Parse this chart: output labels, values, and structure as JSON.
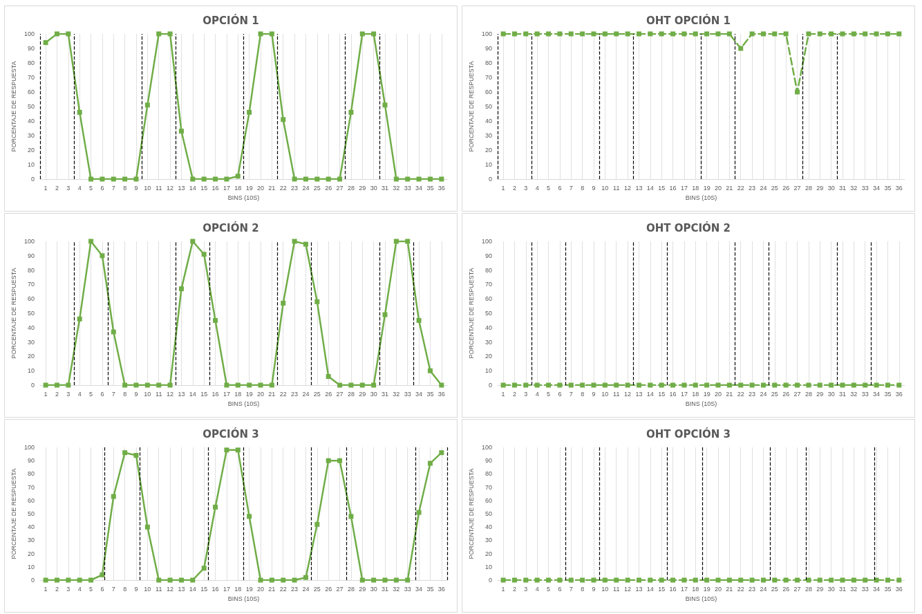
{
  "chart_data": [
    {
      "type": "line",
      "title": "OPCIÓN 1",
      "xlabel": "BINS (10S)",
      "ylabel": "PORCENTAJE DE RESPUESTA",
      "x": [
        1,
        2,
        3,
        4,
        5,
        6,
        7,
        8,
        9,
        10,
        11,
        12,
        13,
        14,
        15,
        16,
        17,
        18,
        19,
        20,
        21,
        22,
        23,
        24,
        25,
        26,
        27,
        28,
        29,
        30,
        31,
        32,
        33,
        34,
        35,
        36
      ],
      "xlim": [
        0.5,
        36.5
      ],
      "xticks": [
        1,
        2,
        3,
        4,
        5,
        6,
        7,
        8,
        9,
        10,
        11,
        12,
        13,
        14,
        15,
        16,
        17,
        18,
        19,
        20,
        21,
        22,
        23,
        24,
        25,
        26,
        27,
        28,
        29,
        30,
        31,
        32,
        33,
        34,
        35,
        36
      ],
      "ylim": [
        0,
        100
      ],
      "yticks": [
        0,
        10,
        20,
        30,
        40,
        50,
        60,
        70,
        80,
        90,
        100
      ],
      "grid": "x",
      "marker": "square",
      "line_style": "solid",
      "series": [
        {
          "color": "#70ad47",
          "values": [
            94,
            100,
            100,
            46,
            0,
            0,
            0,
            0,
            0,
            51,
            100,
            100,
            33,
            0,
            0,
            0,
            0,
            2,
            46,
            100,
            100,
            41,
            0,
            0,
            0,
            0,
            0,
            46,
            100,
            100,
            51,
            0,
            0,
            0,
            0,
            0
          ]
        }
      ],
      "ref_lines": [
        {
          "axis": "x",
          "value": 0.5,
          "color": "#000000",
          "line_style": "dashed"
        },
        {
          "axis": "x",
          "value": 3.5,
          "color": "#000000",
          "line_style": "dashed"
        },
        {
          "axis": "x",
          "value": 9.5,
          "color": "#000000",
          "line_style": "dashed"
        },
        {
          "axis": "x",
          "value": 12.5,
          "color": "#000000",
          "line_style": "dashed"
        },
        {
          "axis": "x",
          "value": 18.5,
          "color": "#000000",
          "line_style": "dashed"
        },
        {
          "axis": "x",
          "value": 21.5,
          "color": "#000000",
          "line_style": "dashed"
        },
        {
          "axis": "x",
          "value": 27.5,
          "color": "#000000",
          "line_style": "dashed"
        },
        {
          "axis": "x",
          "value": 30.5,
          "color": "#000000",
          "line_style": "dashed"
        }
      ]
    },
    {
      "type": "line",
      "title": "OHT OPCIÓN 1",
      "xlabel": "BINS (10S)",
      "ylabel": "PORCENTAJE DE RESPUESTA",
      "x": [
        1,
        2,
        3,
        4,
        5,
        6,
        7,
        8,
        9,
        10,
        11,
        12,
        13,
        14,
        15,
        16,
        17,
        18,
        19,
        20,
        21,
        22,
        23,
        24,
        25,
        26,
        27,
        28,
        29,
        30,
        31,
        32,
        33,
        34,
        35,
        36
      ],
      "xlim": [
        0.5,
        36.5
      ],
      "xticks": [
        1,
        2,
        3,
        4,
        5,
        6,
        7,
        8,
        9,
        10,
        11,
        12,
        13,
        14,
        15,
        16,
        17,
        18,
        19,
        20,
        21,
        22,
        23,
        24,
        25,
        26,
        27,
        28,
        29,
        30,
        31,
        32,
        33,
        34,
        35,
        36
      ],
      "ylim": [
        0,
        100
      ],
      "yticks": [
        0,
        10,
        20,
        30,
        40,
        50,
        60,
        70,
        80,
        90,
        100
      ],
      "grid": "x",
      "marker": "square",
      "line_style": "dashed",
      "series": [
        {
          "color": "#70ad47",
          "values": [
            100,
            100,
            100,
            100,
            100,
            100,
            100,
            100,
            100,
            100,
            100,
            100,
            100,
            100,
            100,
            100,
            100,
            100,
            100,
            100,
            100,
            90,
            100,
            100,
            100,
            100,
            60,
            100,
            100,
            100,
            100,
            100,
            100,
            100,
            100,
            100
          ]
        }
      ],
      "ref_lines": [
        {
          "axis": "x",
          "value": 0.5,
          "color": "#000000",
          "line_style": "dashed"
        },
        {
          "axis": "x",
          "value": 3.5,
          "color": "#000000",
          "line_style": "dashed"
        },
        {
          "axis": "x",
          "value": 9.5,
          "color": "#000000",
          "line_style": "dashed"
        },
        {
          "axis": "x",
          "value": 12.5,
          "color": "#000000",
          "line_style": "dashed"
        },
        {
          "axis": "x",
          "value": 18.5,
          "color": "#000000",
          "line_style": "dashed"
        },
        {
          "axis": "x",
          "value": 21.5,
          "color": "#000000",
          "line_style": "dashed"
        },
        {
          "axis": "x",
          "value": 27.5,
          "color": "#000000",
          "line_style": "dashed"
        },
        {
          "axis": "x",
          "value": 30.5,
          "color": "#000000",
          "line_style": "dashed"
        }
      ]
    },
    {
      "type": "line",
      "title": "OPCIÓN 2",
      "xlabel": "BINS (10S)",
      "ylabel": "PORCENTAJE DE RESPUESTA",
      "x": [
        1,
        2,
        3,
        4,
        5,
        6,
        7,
        8,
        9,
        10,
        11,
        12,
        13,
        14,
        15,
        16,
        17,
        18,
        19,
        20,
        21,
        22,
        23,
        24,
        25,
        26,
        27,
        28,
        29,
        30,
        31,
        32,
        33,
        34,
        35,
        36
      ],
      "xlim": [
        0.5,
        36.5
      ],
      "xticks": [
        1,
        2,
        3,
        4,
        5,
        6,
        7,
        8,
        9,
        10,
        11,
        12,
        13,
        14,
        15,
        16,
        17,
        18,
        19,
        20,
        21,
        22,
        23,
        24,
        25,
        26,
        27,
        28,
        29,
        30,
        31,
        32,
        33,
        34,
        35,
        36
      ],
      "ylim": [
        0,
        100
      ],
      "yticks": [
        0,
        10,
        20,
        30,
        40,
        50,
        60,
        70,
        80,
        90,
        100
      ],
      "grid": "x",
      "marker": "square",
      "line_style": "solid",
      "series": [
        {
          "color": "#70ad47",
          "values": [
            0,
            0,
            0,
            46,
            100,
            90,
            37,
            0,
            0,
            0,
            0,
            0,
            67,
            100,
            91,
            45,
            0,
            0,
            0,
            0,
            0,
            57,
            100,
            98,
            58,
            6,
            0,
            0,
            0,
            0,
            49,
            100,
            100,
            45,
            10,
            0
          ]
        }
      ],
      "ref_lines": [
        {
          "axis": "x",
          "value": 3.5,
          "color": "#000000",
          "line_style": "dashed"
        },
        {
          "axis": "x",
          "value": 6.5,
          "color": "#000000",
          "line_style": "dashed"
        },
        {
          "axis": "x",
          "value": 12.5,
          "color": "#000000",
          "line_style": "dashed"
        },
        {
          "axis": "x",
          "value": 15.5,
          "color": "#000000",
          "line_style": "dashed"
        },
        {
          "axis": "x",
          "value": 21.5,
          "color": "#000000",
          "line_style": "dashed"
        },
        {
          "axis": "x",
          "value": 24.5,
          "color": "#000000",
          "line_style": "dashed"
        },
        {
          "axis": "x",
          "value": 30.5,
          "color": "#000000",
          "line_style": "dashed"
        },
        {
          "axis": "x",
          "value": 33.5,
          "color": "#000000",
          "line_style": "dashed"
        }
      ]
    },
    {
      "type": "line",
      "title": "OHT OPCIÓN 2",
      "xlabel": "BINS (10S)",
      "ylabel": "PORCENTAJE DE RESPUESTA",
      "x": [
        1,
        2,
        3,
        4,
        5,
        6,
        7,
        8,
        9,
        10,
        11,
        12,
        13,
        14,
        15,
        16,
        17,
        18,
        19,
        20,
        21,
        22,
        23,
        24,
        25,
        26,
        27,
        28,
        29,
        30,
        31,
        32,
        33,
        34,
        35,
        36
      ],
      "xlim": [
        0.5,
        36.5
      ],
      "xticks": [
        1,
        2,
        3,
        4,
        5,
        6,
        7,
        8,
        9,
        10,
        11,
        12,
        13,
        14,
        15,
        16,
        17,
        18,
        19,
        20,
        21,
        22,
        23,
        24,
        25,
        26,
        27,
        28,
        29,
        30,
        31,
        32,
        33,
        34,
        35,
        36
      ],
      "ylim": [
        0,
        100
      ],
      "yticks": [
        0,
        10,
        20,
        30,
        40,
        50,
        60,
        70,
        80,
        90,
        100
      ],
      "grid": "x",
      "marker": "square",
      "line_style": "dashed",
      "series": [
        {
          "color": "#70ad47",
          "values": [
            0,
            0,
            0,
            0,
            0,
            0,
            0,
            0,
            0,
            0,
            0,
            0,
            0,
            0,
            0,
            0,
            0,
            0,
            0,
            0,
            0,
            0,
            0,
            0,
            0,
            0,
            0,
            0,
            0,
            0,
            0,
            0,
            0,
            0,
            0,
            0
          ]
        }
      ],
      "ref_lines": [
        {
          "axis": "x",
          "value": 3.5,
          "color": "#000000",
          "line_style": "dashed"
        },
        {
          "axis": "x",
          "value": 6.5,
          "color": "#000000",
          "line_style": "dashed"
        },
        {
          "axis": "x",
          "value": 12.5,
          "color": "#000000",
          "line_style": "dashed"
        },
        {
          "axis": "x",
          "value": 15.5,
          "color": "#000000",
          "line_style": "dashed"
        },
        {
          "axis": "x",
          "value": 21.5,
          "color": "#000000",
          "line_style": "dashed"
        },
        {
          "axis": "x",
          "value": 24.5,
          "color": "#000000",
          "line_style": "dashed"
        },
        {
          "axis": "x",
          "value": 30.5,
          "color": "#000000",
          "line_style": "dashed"
        },
        {
          "axis": "x",
          "value": 33.5,
          "color": "#000000",
          "line_style": "dashed"
        }
      ]
    },
    {
      "type": "line",
      "title": "OPCIÓN 3",
      "xlabel": "BINS (10S)",
      "ylabel": "PORCENTAJE DE RESPUESTA",
      "x": [
        1,
        2,
        3,
        4,
        5,
        6,
        7,
        8,
        9,
        10,
        11,
        12,
        13,
        14,
        15,
        16,
        17,
        18,
        19,
        20,
        21,
        22,
        23,
        24,
        25,
        26,
        27,
        28,
        29,
        30,
        31,
        32,
        33,
        34,
        35,
        36
      ],
      "xlim": [
        0.5,
        36.5
      ],
      "xticks": [
        1,
        2,
        3,
        4,
        5,
        6,
        7,
        8,
        9,
        10,
        11,
        12,
        13,
        14,
        15,
        16,
        17,
        18,
        19,
        20,
        21,
        22,
        23,
        24,
        25,
        26,
        27,
        28,
        29,
        30,
        31,
        32,
        33,
        34,
        35,
        36
      ],
      "ylim": [
        0,
        100
      ],
      "yticks": [
        0,
        10,
        20,
        30,
        40,
        50,
        60,
        70,
        80,
        90,
        100
      ],
      "grid": "x",
      "marker": "square",
      "line_style": "solid",
      "series": [
        {
          "color": "#70ad47",
          "values": [
            0,
            0,
            0,
            0,
            0,
            4,
            63,
            96,
            94,
            40,
            0,
            0,
            0,
            0,
            9,
            55,
            98,
            98,
            48,
            0,
            0,
            0,
            0,
            2,
            42,
            90,
            90,
            48,
            0,
            0,
            0,
            0,
            0,
            51,
            88,
            96
          ]
        }
      ],
      "ref_lines": [
        {
          "axis": "x",
          "value": 6.2,
          "color": "#000000",
          "line_style": "dashed"
        },
        {
          "axis": "x",
          "value": 9.3,
          "color": "#000000",
          "line_style": "dashed"
        },
        {
          "axis": "x",
          "value": 15.4,
          "color": "#000000",
          "line_style": "dashed"
        },
        {
          "axis": "x",
          "value": 18.5,
          "color": "#000000",
          "line_style": "dashed"
        },
        {
          "axis": "x",
          "value": 24.5,
          "color": "#000000",
          "line_style": "dashed"
        },
        {
          "axis": "x",
          "value": 27.6,
          "color": "#000000",
          "line_style": "dashed"
        },
        {
          "axis": "x",
          "value": 33.7,
          "color": "#000000",
          "line_style": "dashed"
        },
        {
          "axis": "x",
          "value": 36.5,
          "color": "#000000",
          "line_style": "dashed"
        }
      ]
    },
    {
      "type": "line",
      "title": "OHT OPCIÓN 3",
      "xlabel": "BINS (10S)",
      "ylabel": "PORCENTAJE DE RESPUESTA",
      "x": [
        1,
        2,
        3,
        4,
        5,
        6,
        7,
        8,
        9,
        10,
        11,
        12,
        13,
        14,
        15,
        16,
        17,
        18,
        19,
        20,
        21,
        22,
        23,
        24,
        25,
        26,
        27,
        28,
        29,
        30,
        31,
        32,
        33,
        34,
        35,
        36
      ],
      "xlim": [
        0.5,
        36.5
      ],
      "xticks": [
        1,
        2,
        3,
        4,
        5,
        6,
        7,
        8,
        9,
        10,
        11,
        12,
        13,
        14,
        15,
        16,
        17,
        18,
        19,
        20,
        21,
        22,
        23,
        24,
        25,
        26,
        27,
        28,
        29,
        30,
        31,
        32,
        33,
        34,
        35,
        36
      ],
      "ylim": [
        0,
        100
      ],
      "yticks": [
        0,
        10,
        20,
        30,
        40,
        50,
        60,
        70,
        80,
        90,
        100
      ],
      "grid": "x",
      "marker": "square",
      "line_style": "dashed",
      "series": [
        {
          "color": "#70ad47",
          "values": [
            0,
            0,
            0,
            0,
            0,
            0,
            0,
            0,
            0,
            0,
            0,
            0,
            0,
            0,
            0,
            0,
            0,
            0,
            0,
            0,
            0,
            0,
            0,
            0,
            0,
            0,
            0,
            0,
            0,
            0,
            0,
            0,
            0,
            0,
            0,
            0
          ]
        }
      ],
      "ref_lines": [
        {
          "axis": "x",
          "value": 6.5,
          "color": "#000000",
          "line_style": "dashed"
        },
        {
          "axis": "x",
          "value": 9.5,
          "color": "#000000",
          "line_style": "dashed"
        },
        {
          "axis": "x",
          "value": 15.5,
          "color": "#000000",
          "line_style": "dashed"
        },
        {
          "axis": "x",
          "value": 18.6,
          "color": "#000000",
          "line_style": "dashed"
        },
        {
          "axis": "x",
          "value": 24.6,
          "color": "#000000",
          "line_style": "dashed"
        },
        {
          "axis": "x",
          "value": 27.8,
          "color": "#000000",
          "line_style": "dashed"
        },
        {
          "axis": "x",
          "value": 33.8,
          "color": "#000000",
          "line_style": "dashed"
        }
      ]
    }
  ]
}
